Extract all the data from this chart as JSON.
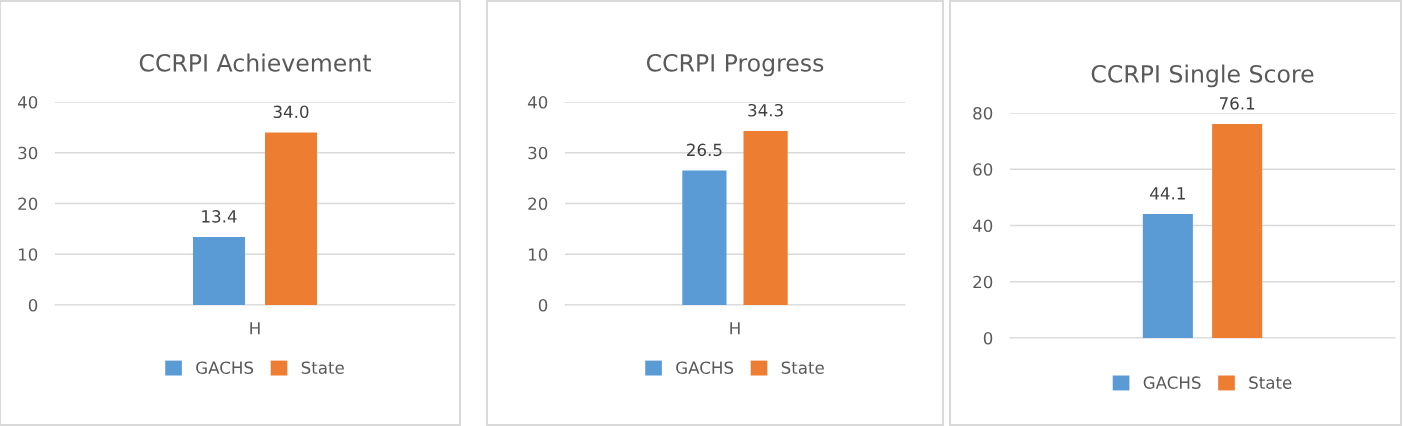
{
  "chart_data": [
    {
      "type": "bar",
      "title": "CCRPI Achievement",
      "categories": [
        "H"
      ],
      "series": [
        {
          "name": "GACHS",
          "color": "#5b9bd5",
          "values": [
            13.4
          ]
        },
        {
          "name": "State",
          "color": "#ed7d31",
          "values": [
            34.0
          ]
        }
      ],
      "ylim": [
        0,
        40
      ],
      "yticks": [
        0,
        10,
        20,
        30,
        40
      ],
      "grid": "y",
      "legend": "bottom",
      "value_labels": [
        [
          "13.4"
        ],
        [
          "34.0"
        ]
      ]
    },
    {
      "type": "bar",
      "title": "CCRPI Progress",
      "categories": [
        "H"
      ],
      "series": [
        {
          "name": "GACHS",
          "color": "#5b9bd5",
          "values": [
            26.5
          ]
        },
        {
          "name": "State",
          "color": "#ed7d31",
          "values": [
            34.3
          ]
        }
      ],
      "ylim": [
        0,
        40
      ],
      "yticks": [
        0,
        10,
        20,
        30,
        40
      ],
      "grid": "y",
      "legend": "bottom",
      "value_labels": [
        [
          "26.5"
        ],
        [
          "34.3"
        ]
      ]
    },
    {
      "type": "bar",
      "title": "CCRPI Single Score",
      "categories": [
        null
      ],
      "series": [
        {
          "name": "GACHS",
          "color": "#5b9bd5",
          "values": [
            44.1
          ]
        },
        {
          "name": "State",
          "color": "#ed7d31",
          "values": [
            76.1
          ]
        }
      ],
      "ylim": [
        0,
        80
      ],
      "yticks": [
        0,
        20,
        40,
        60,
        80
      ],
      "grid": "y",
      "legend": "bottom",
      "value_labels": [
        [
          "44.1"
        ],
        [
          "76.1"
        ]
      ]
    }
  ]
}
